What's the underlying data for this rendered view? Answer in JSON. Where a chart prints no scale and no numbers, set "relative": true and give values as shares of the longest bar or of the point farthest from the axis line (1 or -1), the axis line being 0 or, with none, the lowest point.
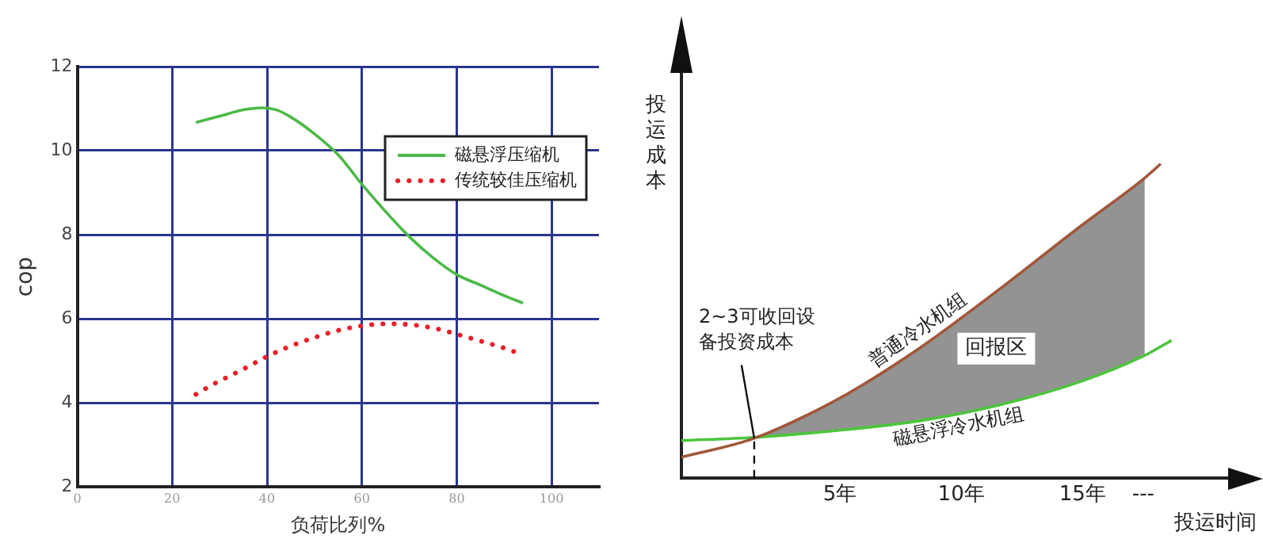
{
  "chart_data": [
    {
      "type": "line",
      "xlabel": "负荷比列%",
      "ylabel": "cop",
      "xlim": [
        0,
        110
      ],
      "xticks": [
        0,
        20,
        40,
        60,
        80,
        100
      ],
      "ylim": [
        2,
        12
      ],
      "yticks": [
        2,
        4,
        6,
        8,
        10,
        12
      ],
      "grid": true,
      "legend": "top right",
      "marker": "none",
      "series": [
        {
          "name": "磁悬浮压缩机",
          "color": "#4cb848",
          "line_style": "solid",
          "x": [
            25,
            30,
            35,
            39,
            42,
            45,
            50,
            55,
            60,
            65,
            70,
            75,
            80,
            85,
            90,
            94
          ],
          "values": [
            10.67,
            10.82,
            10.97,
            11.02,
            10.97,
            10.8,
            10.4,
            9.9,
            9.2,
            8.55,
            7.95,
            7.45,
            7.05,
            6.8,
            6.55,
            6.37
          ]
        },
        {
          "name": "传统较佳压缩机",
          "color": "#e8202a",
          "line_style": "dotted",
          "x": [
            25,
            28.5,
            32,
            35,
            40,
            45,
            50,
            55,
            60,
            65,
            70,
            75,
            80,
            85,
            90,
            92
          ],
          "values": [
            4.2,
            4.43,
            4.63,
            4.8,
            5.1,
            5.35,
            5.55,
            5.72,
            5.83,
            5.88,
            5.86,
            5.78,
            5.63,
            5.47,
            5.3,
            5.22
          ]
        }
      ]
    },
    {
      "type": "line",
      "relative": true,
      "xlabel": "投运时间",
      "ylabel": "投运成本",
      "xlim": [
        -1.53,
        21
      ],
      "x": [
        -1.53,
        1.47,
        4.9,
        8.22,
        11.56,
        14.89,
        17.56,
        18.22,
        18.67
      ],
      "xticks": [
        {
          "value": 5,
          "label": "5年"
        },
        {
          "value": 10,
          "label": "10年"
        },
        {
          "value": 15,
          "label": "15年"
        },
        {
          "value": 17.5,
          "label": "---"
        }
      ],
      "grid": false,
      "legend": false,
      "marker": "none",
      "series": [
        {
          "name": "普通冷水机组",
          "color": "#a0573a",
          "line_style": "solid",
          "values": [
            0.066,
            0.126,
            0.25,
            0.41,
            0.6,
            0.8,
            0.955,
            1,
            null
          ]
        },
        {
          "name": "磁悬浮冷水机组",
          "color": "#4cc43c",
          "line_style": "solid",
          "values": [
            0.119,
            0.129,
            0.151,
            0.181,
            0.232,
            0.306,
            0.39,
            0.418,
            0.438
          ],
          "lower": [
            null,
            0.129,
            0.151,
            0.181,
            0.232,
            0.306,
            0.39,
            null,
            null
          ],
          "upper": [
            null,
            0.126,
            0.25,
            0.41,
            0.6,
            0.8,
            0.955,
            null,
            null
          ]
        }
      ],
      "ref_lines": [
        {
          "axis": "x",
          "value": 1.47,
          "line_style": "dashed"
        }
      ],
      "annotations": [
        {
          "text": "2~3可收回设备投资成本",
          "x": 1.47,
          "y": 0.127
        },
        "回报区"
      ]
    }
  ]
}
